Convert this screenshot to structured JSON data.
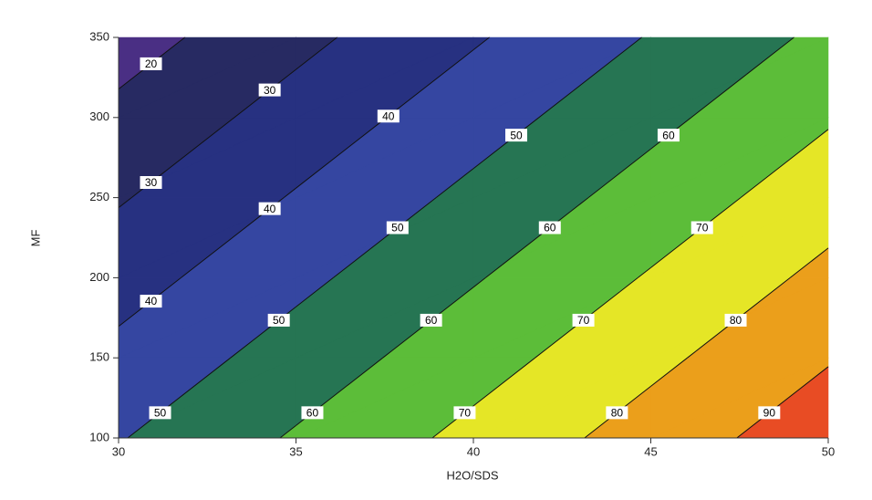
{
  "chart_data": {
    "type": "contour",
    "x_label": "H2O/SDS",
    "y_label": "MF",
    "x": [
      30,
      35,
      40,
      45,
      50
    ],
    "y": [
      100,
      150,
      200,
      250,
      300,
      350
    ],
    "z": [
      [
        49.4,
        61.05,
        72.7,
        84.35,
        96.0
      ],
      [
        42.65,
        54.3,
        65.95,
        77.6,
        89.25
      ],
      [
        35.9,
        47.55,
        59.2,
        70.85,
        82.5
      ],
      [
        29.15,
        40.8,
        52.45,
        64.1,
        75.75
      ],
      [
        22.4,
        34.05,
        45.7,
        57.35,
        69.0
      ],
      [
        15.65,
        27.3,
        38.95,
        50.6,
        62.25
      ]
    ],
    "levels": [
      20,
      30,
      40,
      50,
      60,
      70,
      80,
      90
    ],
    "fill_colors": [
      "#4a2f84",
      "#272a62",
      "#273181",
      "#3546a1",
      "#267553",
      "#5cbd39",
      "#e5e626",
      "#eb9f1b",
      "#e84c24"
    ],
    "line_color": "#111111",
    "xlim": [
      30,
      50
    ],
    "xticks": [
      30,
      35,
      40,
      45,
      50
    ],
    "ylim": [
      100,
      350
    ],
    "yticks": [
      100,
      150,
      200,
      250,
      300,
      350
    ]
  }
}
